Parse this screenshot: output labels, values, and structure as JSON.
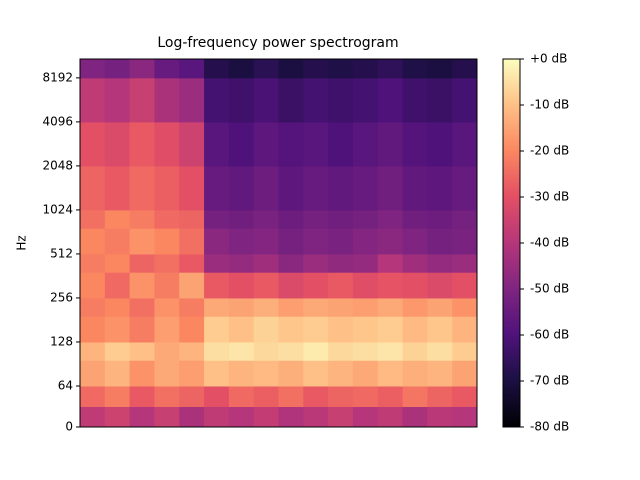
{
  "chart_data": {
    "type": "heatmap",
    "title": "Log-frequency power spectrogram",
    "y_label": "Hz",
    "yscale": "symlog",
    "linthresh": 64,
    "ylim": [
      0,
      11025
    ],
    "yticks": [
      0,
      64,
      128,
      256,
      512,
      1024,
      2048,
      4096,
      8192
    ],
    "y_bins": [
      0,
      32,
      64,
      96,
      128,
      192,
      256,
      384,
      512,
      768,
      1024,
      2048,
      4096,
      8192,
      11025
    ],
    "colormap": "magma",
    "clim": [
      -80,
      0
    ],
    "cticks": [
      {
        "value": 0,
        "label": "+0 dB"
      },
      {
        "value": -10,
        "label": "-10 dB"
      },
      {
        "value": -20,
        "label": "-20 dB"
      },
      {
        "value": -30,
        "label": "-30 dB"
      },
      {
        "value": -40,
        "label": "-40 dB"
      },
      {
        "value": -50,
        "label": "-50 dB"
      },
      {
        "value": -60,
        "label": "-60 dB"
      },
      {
        "value": -70,
        "label": "-70 dB"
      },
      {
        "value": -80,
        "label": "-80 dB"
      }
    ],
    "values": [
      [
        -38,
        -35,
        -40,
        -36,
        -42,
        -38,
        -40,
        -37,
        -41,
        -39,
        -36,
        -40,
        -38,
        -42,
        -39,
        -40
      ],
      [
        -25,
        -22,
        -28,
        -24,
        -26,
        -30,
        -25,
        -27,
        -24,
        -28,
        -26,
        -25,
        -27,
        -23,
        -26,
        -28
      ],
      [
        -15,
        -12,
        -18,
        -14,
        -16,
        -10,
        -12,
        -11,
        -13,
        -10,
        -12,
        -14,
        -11,
        -13,
        -12,
        -15
      ],
      [
        -12,
        -8,
        -10,
        -14,
        -12,
        -5,
        -4,
        -6,
        -5,
        -3,
        -6,
        -5,
        -4,
        -7,
        -5,
        -8
      ],
      [
        -20,
        -18,
        -22,
        -16,
        -20,
        -8,
        -10,
        -7,
        -9,
        -8,
        -10,
        -9,
        -8,
        -11,
        -9,
        -12
      ],
      [
        -22,
        -20,
        -24,
        -18,
        -22,
        -14,
        -15,
        -13,
        -16,
        -14,
        -15,
        -16,
        -14,
        -17,
        -15,
        -18
      ],
      [
        -20,
        -25,
        -18,
        -22,
        -15,
        -28,
        -30,
        -28,
        -32,
        -30,
        -28,
        -31,
        -29,
        -30,
        -32,
        -30
      ],
      [
        -22,
        -20,
        -26,
        -24,
        -28,
        -45,
        -46,
        -44,
        -48,
        -45,
        -47,
        -46,
        -40,
        -44,
        -46,
        -45
      ],
      [
        -20,
        -22,
        -18,
        -20,
        -24,
        -48,
        -50,
        -49,
        -52,
        -50,
        -51,
        -49,
        -48,
        -50,
        -52,
        -51
      ],
      [
        -24,
        -20,
        -22,
        -25,
        -26,
        -52,
        -53,
        -51,
        -54,
        -52,
        -53,
        -52,
        -50,
        -53,
        -54,
        -52
      ],
      [
        -26,
        -28,
        -25,
        -27,
        -30,
        -55,
        -56,
        -54,
        -57,
        -55,
        -56,
        -55,
        -53,
        -56,
        -57,
        -55
      ],
      [
        -30,
        -32,
        -28,
        -31,
        -35,
        -58,
        -60,
        -57,
        -59,
        -58,
        -60,
        -58,
        -56,
        -59,
        -60,
        -58
      ],
      [
        -38,
        -40,
        -36,
        -42,
        -45,
        -62,
        -63,
        -61,
        -64,
        -62,
        -63,
        -62,
        -60,
        -63,
        -64,
        -62
      ],
      [
        -50,
        -52,
        -48,
        -55,
        -58,
        -68,
        -70,
        -67,
        -70,
        -68,
        -69,
        -68,
        -66,
        -69,
        -70,
        -68
      ]
    ]
  }
}
